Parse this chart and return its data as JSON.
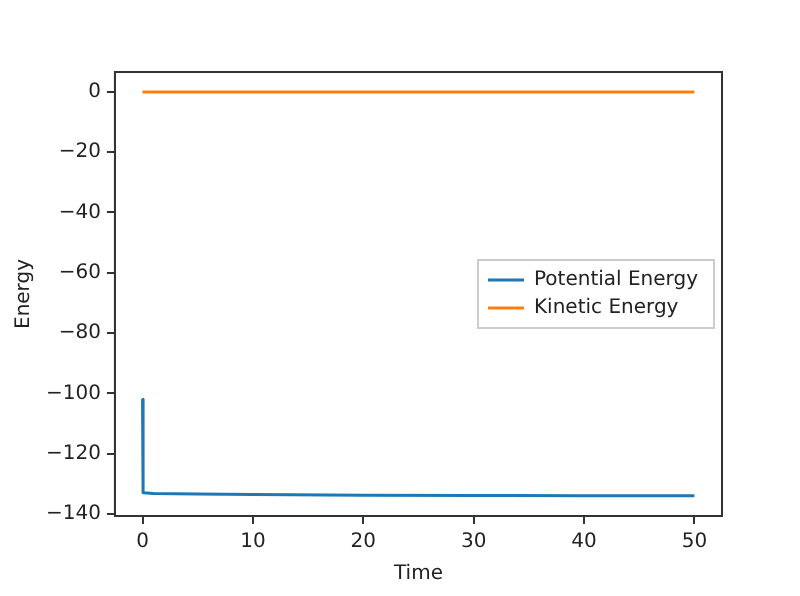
{
  "chart_data": {
    "type": "line",
    "xlabel": "Time",
    "ylabel": "Energy",
    "series": [
      {
        "name": "Potential Energy",
        "color": "#1f77b4",
        "x": [
          0,
          0.05,
          1,
          5,
          10,
          20,
          30,
          40,
          50
        ],
        "values": [
          -102,
          -133,
          -133.2,
          -133.4,
          -133.6,
          -133.8,
          -133.9,
          -134,
          -134
        ]
      },
      {
        "name": "Kinetic Energy",
        "color": "#ff7f0e",
        "x": [
          0,
          50
        ],
        "values": [
          0,
          0
        ]
      }
    ],
    "xlim": [
      -2.5,
      52.5
    ],
    "xticks": [
      0,
      10,
      20,
      30,
      40,
      50
    ],
    "ylim": [
      -140.7,
      6.6
    ],
    "yticks": [
      {
        "value": -140,
        "label": "−140"
      },
      {
        "value": -120,
        "label": "−120"
      },
      {
        "value": -100,
        "label": "−100"
      },
      {
        "value": -80,
        "label": "−80"
      },
      {
        "value": -60,
        "label": "−60"
      },
      {
        "value": -40,
        "label": "−40"
      },
      {
        "value": -20,
        "label": "−20"
      },
      0
    ],
    "grid": false,
    "legend": "right",
    "marker": "none",
    "line_style": "solid"
  }
}
